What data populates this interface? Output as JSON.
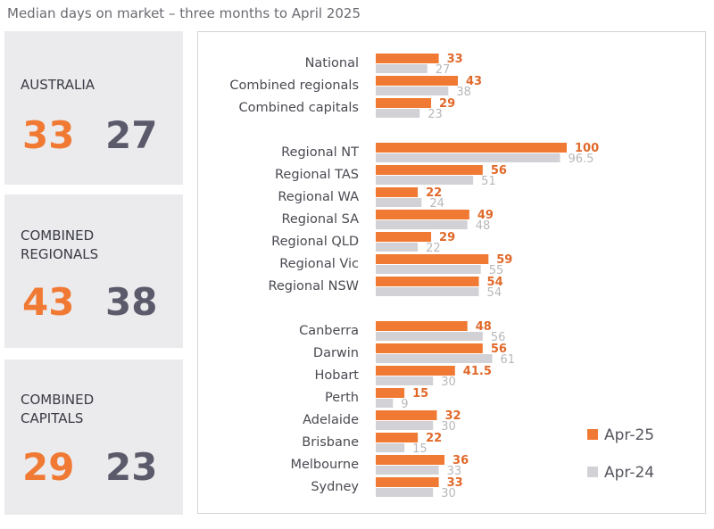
{
  "title": "Median days on market – three months to April 2025",
  "panels": [
    {
      "label": "AUSTRALIA",
      "apr25": "33",
      "apr24": "27"
    },
    {
      "label": "COMBINED REGIONALS",
      "apr25": "43",
      "apr24": "38"
    },
    {
      "label": "COMBINED CAPITALS",
      "apr25": "29",
      "apr24": "23"
    }
  ],
  "colors": {
    "apr25": "#f07a33",
    "apr24": "#d2d2d6",
    "dark": "#5b5a6b"
  },
  "chart_data": {
    "type": "bar",
    "orientation": "horizontal",
    "title": "",
    "categories": [
      "National",
      "Combined regionals",
      "Combined capitals",
      "Regional NT",
      "Regional TAS",
      "Regional WA",
      "Regional SA",
      "Regional QLD",
      "Regional Vic",
      "Regional NSW",
      "Canberra",
      "Darwin",
      "Hobart",
      "Perth",
      "Adelaide",
      "Brisbane",
      "Melbourne",
      "Sydney"
    ],
    "groups": [
      [
        0,
        1,
        2
      ],
      [
        3,
        4,
        5,
        6,
        7,
        8,
        9
      ],
      [
        10,
        11,
        12,
        13,
        14,
        15,
        16,
        17
      ]
    ],
    "series": [
      {
        "name": "Apr-25",
        "values": [
          33,
          43,
          29,
          100,
          56,
          22,
          49,
          29,
          59,
          54,
          48,
          56,
          41.5,
          15,
          32,
          22,
          36,
          33
        ]
      },
      {
        "name": "Apr-24",
        "values": [
          27,
          38,
          23,
          96.5,
          51,
          24,
          48,
          22,
          55,
          54,
          56,
          61,
          30,
          9,
          30,
          15,
          33,
          30
        ]
      }
    ],
    "xlim": [
      0,
      100
    ],
    "grid": false,
    "legend": "bottom-right"
  }
}
